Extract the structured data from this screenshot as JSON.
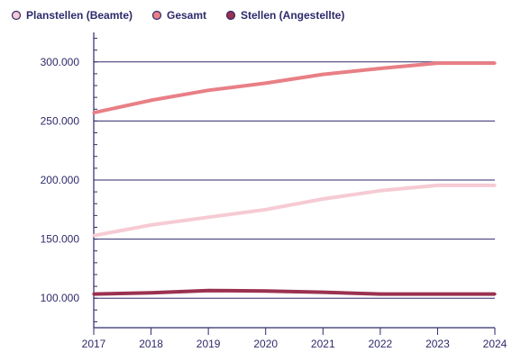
{
  "chart_data": {
    "type": "line",
    "title": "",
    "xlabel": "",
    "ylabel": "",
    "x": [
      "2017",
      "2018",
      "2019",
      "2020",
      "2021",
      "2022",
      "2023",
      "2024"
    ],
    "y_ticks": [
      "100.000",
      "150.000",
      "200.000",
      "250.000",
      "300.000"
    ],
    "ylim": [
      75000,
      325000
    ],
    "grid": "horizontal",
    "legend_position": "top-left",
    "series": [
      {
        "name": "Planstellen (Beamte)",
        "color": "#f6cbd3",
        "marker_color": "#f6cbd3",
        "values": [
          153000,
          162000,
          168500,
          175000,
          184000,
          191000,
          195500,
          195500
        ]
      },
      {
        "name": "Gesamt",
        "color": "#e97f86",
        "marker_color": "#e97f86",
        "values": [
          257000,
          267500,
          276000,
          282000,
          289500,
          294500,
          299000,
          299000
        ]
      },
      {
        "name": "Stellen (Angestellte)",
        "color": "#9b3150",
        "marker_color": "#9b3150",
        "values": [
          103500,
          104500,
          106500,
          106000,
          105000,
          103500,
          103500,
          103500
        ]
      }
    ]
  }
}
